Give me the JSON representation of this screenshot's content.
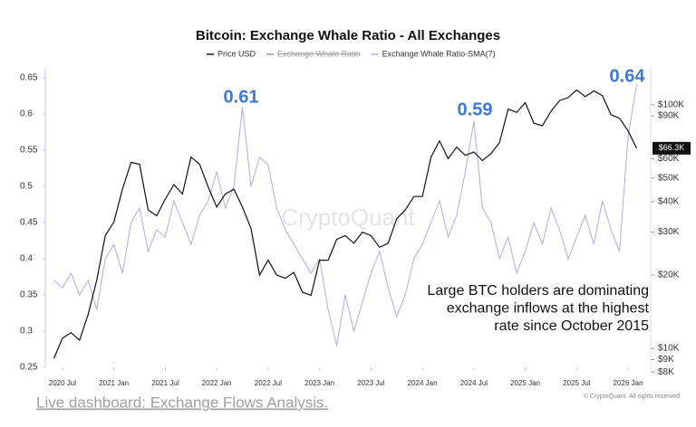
{
  "chart_data": {
    "type": "line",
    "title": "Bitcoin: Exchange Whale Ratio - All Exchanges",
    "x": [
      "2020-06",
      "2020-07",
      "2020-08",
      "2020-09",
      "2020-10",
      "2020-11",
      "2020-12",
      "2021-01",
      "2021-02",
      "2021-03",
      "2021-04",
      "2021-05",
      "2021-06",
      "2021-07",
      "2021-08",
      "2021-09",
      "2021-10",
      "2021-11",
      "2021-12",
      "2022-01",
      "2022-02",
      "2022-03",
      "2022-04",
      "2022-05",
      "2022-06",
      "2022-07",
      "2022-08",
      "2022-09",
      "2022-10",
      "2022-11",
      "2022-12",
      "2023-01",
      "2023-02",
      "2023-03",
      "2023-04",
      "2023-05",
      "2023-06",
      "2023-07",
      "2023-08",
      "2023-09",
      "2023-10",
      "2023-11",
      "2023-12",
      "2024-01",
      "2024-02",
      "2024-03",
      "2024-04",
      "2024-05",
      "2024-06",
      "2024-07",
      "2024-08",
      "2024-09",
      "2024-10",
      "2024-11",
      "2024-12",
      "2025-01",
      "2025-02",
      "2025-03",
      "2025-04",
      "2025-05",
      "2025-06",
      "2025-07",
      "2025-08",
      "2025-09",
      "2025-10",
      "2025-11",
      "2025-12",
      "2026-01",
      "2026-02"
    ],
    "xlim": [
      "2020-05",
      "2026-03"
    ],
    "xticks": [
      {
        "value": "2020-07",
        "label": "2020 Jul"
      },
      {
        "value": "2021-01",
        "label": "2021 Jan"
      },
      {
        "value": "2021-07",
        "label": "2021 Jul"
      },
      {
        "value": "2022-01",
        "label": "2022 Jan"
      },
      {
        "value": "2022-07",
        "label": "2022 Jul"
      },
      {
        "value": "2023-01",
        "label": "2023 Jan"
      },
      {
        "value": "2023-07",
        "label": "2023 Jul"
      },
      {
        "value": "2024-01",
        "label": "2024 Jan"
      },
      {
        "value": "2024-07",
        "label": "2024 Jul"
      },
      {
        "value": "2025-01",
        "label": "2025 Jan"
      },
      {
        "value": "2025-07",
        "label": "2025 Jul"
      },
      {
        "value": "2026-01",
        "label": "2026 Jan"
      }
    ],
    "ylim": [
      0.25,
      0.65
    ],
    "yticks": [
      0.25,
      0.3,
      0.35,
      0.4,
      0.45,
      0.5,
      0.55,
      0.6,
      0.65
    ],
    "y2lim": [
      8360,
      129000
    ],
    "y2log": true,
    "y2ticks": [
      {
        "value": 8000,
        "label": "$8K"
      },
      {
        "value": 9000,
        "label": "$9K"
      },
      {
        "value": 10000,
        "label": "$10K"
      },
      {
        "value": 20000,
        "label": "$20K"
      },
      {
        "value": 30000,
        "label": "$30K"
      },
      {
        "value": 40000,
        "label": "$40K"
      },
      {
        "value": 50000,
        "label": "$50K"
      },
      {
        "value": 60000,
        "label": "$60K"
      },
      {
        "value": 90000,
        "label": "$90K"
      },
      {
        "value": 100000,
        "label": "$100K"
      }
    ],
    "series": [
      {
        "name": "Price USD",
        "color": "#111111",
        "axis": "y2",
        "values": [
          9100,
          11000,
          11600,
          10800,
          13800,
          19000,
          29000,
          33000,
          45000,
          58000,
          57000,
          37000,
          35000,
          41000,
          47000,
          43000,
          61000,
          57000,
          46000,
          38000,
          43000,
          45000,
          38000,
          31000,
          20000,
          23000,
          20000,
          19400,
          20500,
          17000,
          16500,
          23000,
          23000,
          28000,
          29000,
          27000,
          30000,
          29000,
          26000,
          27000,
          34000,
          37000,
          42000,
          42000,
          61000,
          71000,
          60000,
          67000,
          62000,
          64000,
          59000,
          63000,
          70000,
          96000,
          93000,
          102000,
          84000,
          82000,
          94000,
          104000,
          107000,
          115000,
          108000,
          114000,
          109000,
          91000,
          88000,
          78000,
          66300
        ],
        "value_labels": [
          null,
          null,
          null,
          null,
          null,
          null,
          null,
          null,
          null,
          null,
          null,
          null,
          null,
          null,
          null,
          null,
          null,
          null,
          null,
          null,
          null,
          null,
          null,
          null,
          null,
          null,
          null,
          null,
          null,
          null,
          null,
          null,
          null,
          null,
          null,
          null,
          null,
          null,
          null,
          null,
          null,
          null,
          null,
          null,
          null,
          null,
          null,
          null,
          null,
          null,
          null,
          null,
          null,
          null,
          null,
          null,
          null,
          null,
          null,
          null,
          null,
          null,
          null,
          null,
          null,
          null,
          null,
          null,
          "$66.3K"
        ]
      },
      {
        "name": "Exchange Whale Ratio",
        "color": "#999999",
        "hidden": true
      },
      {
        "name": "Exchange Whale Ratio-SMA(7)",
        "color": "#b4a8ea",
        "values": [
          0.37,
          0.36,
          0.38,
          0.35,
          0.37,
          0.33,
          0.4,
          0.42,
          0.38,
          0.45,
          0.47,
          0.41,
          0.44,
          0.43,
          0.48,
          0.45,
          0.42,
          0.46,
          0.48,
          0.52,
          0.47,
          0.5,
          0.61,
          0.5,
          0.54,
          0.53,
          0.47,
          0.44,
          0.42,
          0.4,
          0.38,
          0.4,
          0.33,
          0.28,
          0.35,
          0.3,
          0.34,
          0.38,
          0.41,
          0.36,
          0.32,
          0.35,
          0.4,
          0.42,
          0.45,
          0.48,
          0.43,
          0.46,
          0.52,
          0.59,
          0.47,
          0.45,
          0.4,
          0.43,
          0.38,
          0.41,
          0.45,
          0.42,
          0.47,
          0.44,
          0.4,
          0.43,
          0.46,
          0.42,
          0.48,
          0.44,
          0.41,
          0.57,
          0.64
        ]
      }
    ],
    "annotations": [
      "0.61",
      "0.59",
      "0.64"
    ],
    "note": [
      "Large BTC holders are dominating",
      "exchange inflows at the highest",
      "rate since October 2015"
    ],
    "watermark": "CryptoQuant",
    "copyright": "© CryptoQuant. All rights reserved",
    "link": "Live dashboard: Exchange Flows Analysis."
  }
}
